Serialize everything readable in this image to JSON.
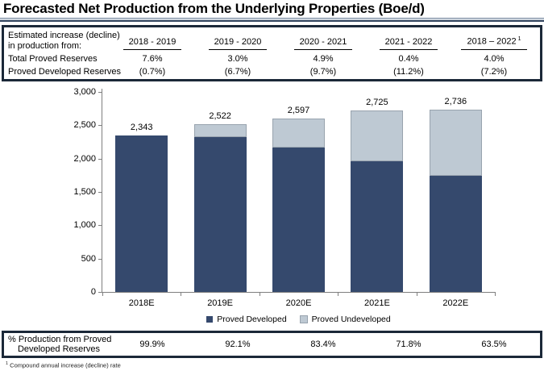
{
  "title": "Forecasted Net Production from the Underlying Properties (Boe/d)",
  "top_table": {
    "header_line1": "Estimated increase (decline)",
    "header_line2": "in production from:",
    "columns": [
      "2018 - 2019",
      "2019 - 2020",
      "2020 - 2021",
      "2021 - 2022",
      "2018 – 2022"
    ],
    "last_column_superscript": "1",
    "rows": [
      {
        "label": "Total Proved Reserves",
        "values": [
          "7.6%",
          "3.0%",
          "4.9%",
          "0.4%",
          "4.0%"
        ]
      },
      {
        "label": "Proved Developed Reserves",
        "values": [
          "(0.7%)",
          "(6.7%)",
          "(9.7%)",
          "(11.2%)",
          "(7.2%)"
        ]
      }
    ]
  },
  "chart_data": {
    "type": "bar",
    "stacked": true,
    "categories": [
      "2018E",
      "2019E",
      "2020E",
      "2021E",
      "2022E"
    ],
    "series": [
      {
        "name": "Proved Developed",
        "color": "#35496D",
        "values": [
          2341,
          2323,
          2166,
          1957,
          1737
        ]
      },
      {
        "name": "Proved Undeveloped",
        "color": "#BEC9D3",
        "values": [
          2,
          199,
          431,
          768,
          999
        ]
      }
    ],
    "totals": [
      2343,
      2522,
      2597,
      2725,
      2736
    ],
    "total_labels": [
      "2,343",
      "2,522",
      "2,597",
      "2,725",
      "2,736"
    ],
    "ylim": [
      0,
      3000
    ],
    "ytick_interval": 500,
    "ytick_labels": [
      "0",
      "500",
      "1,000",
      "1,500",
      "2,000",
      "2,500",
      "3,000"
    ],
    "legend_position": "bottom",
    "grid": false
  },
  "bottom_table": {
    "label_line1": "% Production from Proved",
    "label_line2": "Developed Reserves",
    "values": [
      "99.9%",
      "92.1%",
      "83.4%",
      "71.8%",
      "63.5%"
    ]
  },
  "footnote": {
    "superscript": "1",
    "text": "Compound annual increase (decline) rate"
  },
  "colors": {
    "developed": "#35496D",
    "undeveloped": "#BEC9D3",
    "undeveloped_border": "#98A3AE",
    "table_border": "#1B2838",
    "axis": "#7F7F7F"
  }
}
